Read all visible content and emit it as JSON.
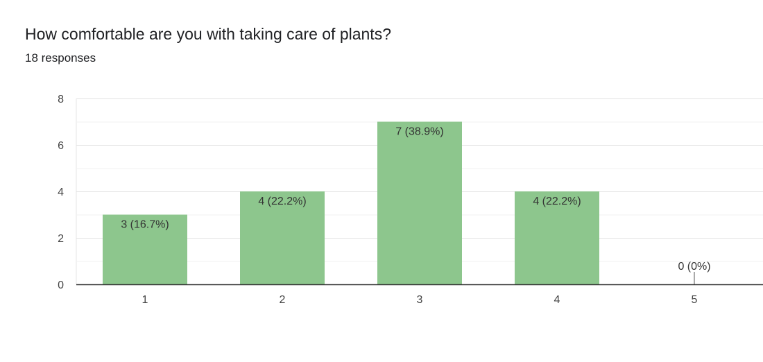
{
  "question": {
    "title": "How comfortable are you with taking care of plants?",
    "responses": "18 responses"
  },
  "chart_data": {
    "type": "bar",
    "categories": [
      "1",
      "2",
      "3",
      "4",
      "5"
    ],
    "values": [
      3,
      4,
      7,
      4,
      0
    ],
    "data_labels": [
      "3 (16.7%)",
      "4 (22.2%)",
      "7 (38.9%)",
      "4 (22.2%)",
      "0 (0%)"
    ],
    "ylim": [
      0,
      8
    ],
    "yticks": [
      "0",
      "2",
      "4",
      "6",
      "8"
    ],
    "grid": true,
    "bar_color": "#8dc68d"
  }
}
